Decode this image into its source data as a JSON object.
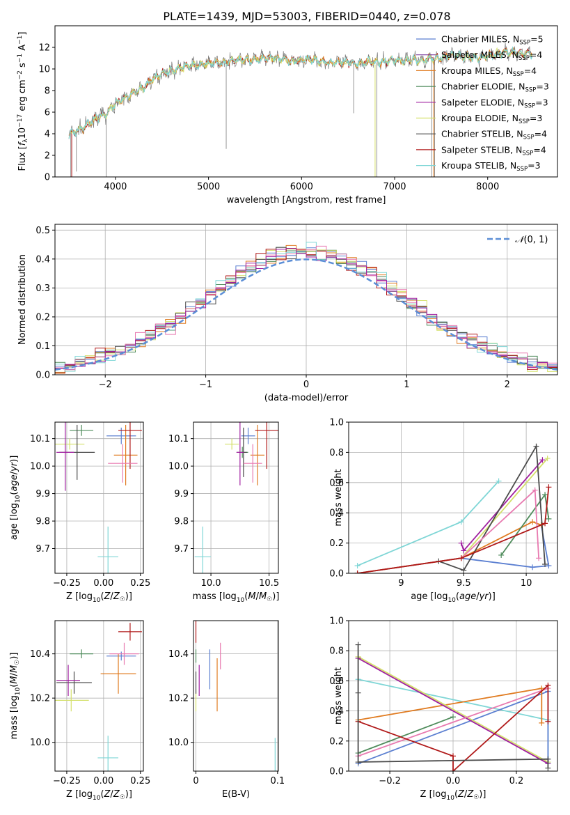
{
  "title": "PLATE=1439, MJD=53003, FIBERID=0440, z=0.078",
  "colors": {
    "Chabrier MILES": "#5b7fd1",
    "Salpeter MILES": "#7b3fa0",
    "Kroupa MILES": "#e07b20",
    "Chabrier ELODIE": "#4e8b5b",
    "Salpeter ELODIE": "#a020a0",
    "Kroupa ELODIE": "#d4e06a",
    "Chabrier STELIB": "#4a4a4a",
    "Salpeter STELIB": "#b01818",
    "Kroupa STELIB": "#7fd6d6",
    "pink": "#e87ab0",
    "gaussian": "#5b8ed6"
  },
  "chart_data": [
    {
      "id": "spectrum",
      "type": "line",
      "xlabel": "wavelength [Angstrom, rest frame]",
      "ylabel": "Flux [f_λ10^-17 erg cm^-2 s^-1 A^-1]",
      "xlim": [
        3350,
        8750
      ],
      "ylim": [
        0,
        14
      ],
      "xticks": [
        4000,
        5000,
        6000,
        7000,
        8000
      ],
      "yticks": [
        0,
        2,
        4,
        6,
        8,
        10,
        12
      ],
      "grid": false,
      "legend_position": "right",
      "legend": [
        {
          "label": "Chabrier MILES, N",
          "sub": "SSP",
          "val": "=5",
          "color": "#5b7fd1"
        },
        {
          "label": "Salpeter MILES, N",
          "sub": "SSP",
          "val": "=4",
          "color": "#7b3fa0"
        },
        {
          "label": "Kroupa MILES, N",
          "sub": "SSP",
          "val": "=4",
          "color": "#e07b20"
        },
        {
          "label": "Chabrier ELODIE, N",
          "sub": "SSP",
          "val": "=3",
          "color": "#4e8b5b"
        },
        {
          "label": "Salpeter ELODIE, N",
          "sub": "SSP",
          "val": "=3",
          "color": "#a020a0"
        },
        {
          "label": "Kroupa ELODIE, N",
          "sub": "SSP",
          "val": "=3",
          "color": "#d4e06a"
        },
        {
          "label": "Chabrier STELIB, N",
          "sub": "SSP",
          "val": "=4",
          "color": "#4a4a4a"
        },
        {
          "label": "Salpeter STELIB, N",
          "sub": "SSP",
          "val": "=4",
          "color": "#b01818"
        },
        {
          "label": "Kroupa STELIB, N",
          "sub": "SSP",
          "val": "=3",
          "color": "#7fd6d6"
        }
      ],
      "data_series": {
        "name": "data",
        "x": [
          3500,
          3600,
          3700,
          3800,
          3900,
          4000,
          4100,
          4200,
          4300,
          4400,
          4500,
          4600,
          4700,
          4800,
          4900,
          5000,
          5100,
          5200,
          5300,
          5400,
          5500,
          5600,
          5700,
          5800,
          5900,
          6000,
          6100,
          6200,
          6300,
          6400,
          6500,
          6600,
          6700,
          6800,
          6900,
          7000,
          7100,
          7200,
          7300,
          7400,
          7500,
          7600,
          7700,
          7800,
          7900,
          8000,
          8100,
          8200,
          8300,
          8400
        ],
        "y": [
          4.0,
          4.3,
          4.8,
          5.5,
          5.8,
          6.8,
          7.3,
          7.8,
          8.3,
          9.0,
          9.6,
          9.8,
          10.1,
          10.3,
          10.4,
          10.5,
          10.6,
          10.6,
          10.9,
          10.8,
          10.9,
          11.0,
          11.0,
          10.9,
          10.7,
          10.8,
          10.9,
          10.7,
          10.6,
          10.6,
          10.6,
          10.5,
          10.7,
          10.6,
          10.7,
          10.8,
          10.8,
          10.9,
          10.8,
          11.0,
          11.0,
          11.3,
          11.2,
          11.1,
          11.0,
          11.2,
          11.4,
          11.6,
          11.5,
          11.4
        ]
      }
    },
    {
      "id": "residual_hist",
      "type": "bar",
      "xlabel": "(data-model)/error",
      "ylabel": "Normed distribution",
      "xlim": [
        -2.5,
        2.5
      ],
      "ylim": [
        0,
        0.52
      ],
      "xticks": [
        -2,
        -1,
        0,
        1,
        2
      ],
      "yticks": [
        0.0,
        0.1,
        0.2,
        0.3,
        0.4,
        0.5
      ],
      "grid": true,
      "bin_edges_start": -2.5,
      "bin_width": 0.1,
      "legend": [
        {
          "label": "N(0,1)",
          "color": "#5b8ed6"
        }
      ]
    },
    {
      "id": "age_vs_Z",
      "type": "scatter",
      "xlabel": "Z [log10(Z/Z☉)]",
      "ylabel": "age  [log10(age/yr)]",
      "xlim": [
        -0.33,
        0.27
      ],
      "ylim": [
        9.61,
        10.16
      ],
      "xticks": [
        -0.25,
        0.0,
        0.25
      ],
      "xticklabels": [
        "−0.25",
        "0.00",
        "0.25"
      ],
      "yticks": [
        9.7,
        9.8,
        9.9,
        10.0,
        10.1
      ],
      "grid": true
    },
    {
      "id": "age_vs_mass",
      "type": "scatter",
      "xlabel": "mass [log10(M/M☉)]",
      "ylabel": "",
      "xlim": [
        9.85,
        10.58
      ],
      "ylim": [
        9.61,
        10.16
      ],
      "xticks": [
        10.0,
        10.5
      ],
      "xticklabels": [
        "10.0",
        "10.5"
      ],
      "yticks": [
        9.7,
        9.8,
        9.9,
        10.0,
        10.1
      ],
      "grid": true
    },
    {
      "id": "massweight_vs_age",
      "type": "line",
      "xlabel": "age  [log10(age/yr)]",
      "ylabel": "mass weight",
      "xlim": [
        8.58,
        10.25
      ],
      "ylim": [
        0,
        1
      ],
      "xticks": [
        9.0,
        9.5,
        10.0
      ],
      "yticks": [
        0.0,
        0.2,
        0.4,
        0.6,
        0.8,
        1.0
      ],
      "grid": true
    },
    {
      "id": "mass_vs_Z",
      "type": "scatter",
      "xlabel": "Z [log10(Z/Z☉)]",
      "ylabel": "mass [log10(M/M☉)]",
      "xlim": [
        -0.33,
        0.27
      ],
      "ylim": [
        9.87,
        10.55
      ],
      "xticks": [
        -0.25,
        0.0,
        0.25
      ],
      "xticklabels": [
        "−0.25",
        "0.00",
        "0.25"
      ],
      "yticks": [
        10.0,
        10.2,
        10.4
      ],
      "grid": true
    },
    {
      "id": "mass_vs_EBV",
      "type": "scatter",
      "xlabel": "E(B-V)",
      "ylabel": "",
      "xlim": [
        -0.003,
        0.101
      ],
      "ylim": [
        9.87,
        10.55
      ],
      "xticks": [
        0.0,
        0.1
      ],
      "xticklabels": [
        "0",
        "0.1"
      ],
      "yticks": [
        10.0,
        10.2,
        10.4
      ],
      "grid": true
    },
    {
      "id": "massweight_vs_Z",
      "type": "line",
      "xlabel": "Z [log10(Z/Z☉)]",
      "ylabel": "mass weight",
      "xlim": [
        -0.33,
        0.33
      ],
      "ylim": [
        0,
        1
      ],
      "xticks": [
        -0.2,
        0.0,
        0.2
      ],
      "xticklabels": [
        "−0.2",
        "0.0",
        "0.2"
      ],
      "yticks": [
        0.0,
        0.2,
        0.4,
        0.6,
        0.8,
        1.0
      ],
      "grid": true
    }
  ]
}
